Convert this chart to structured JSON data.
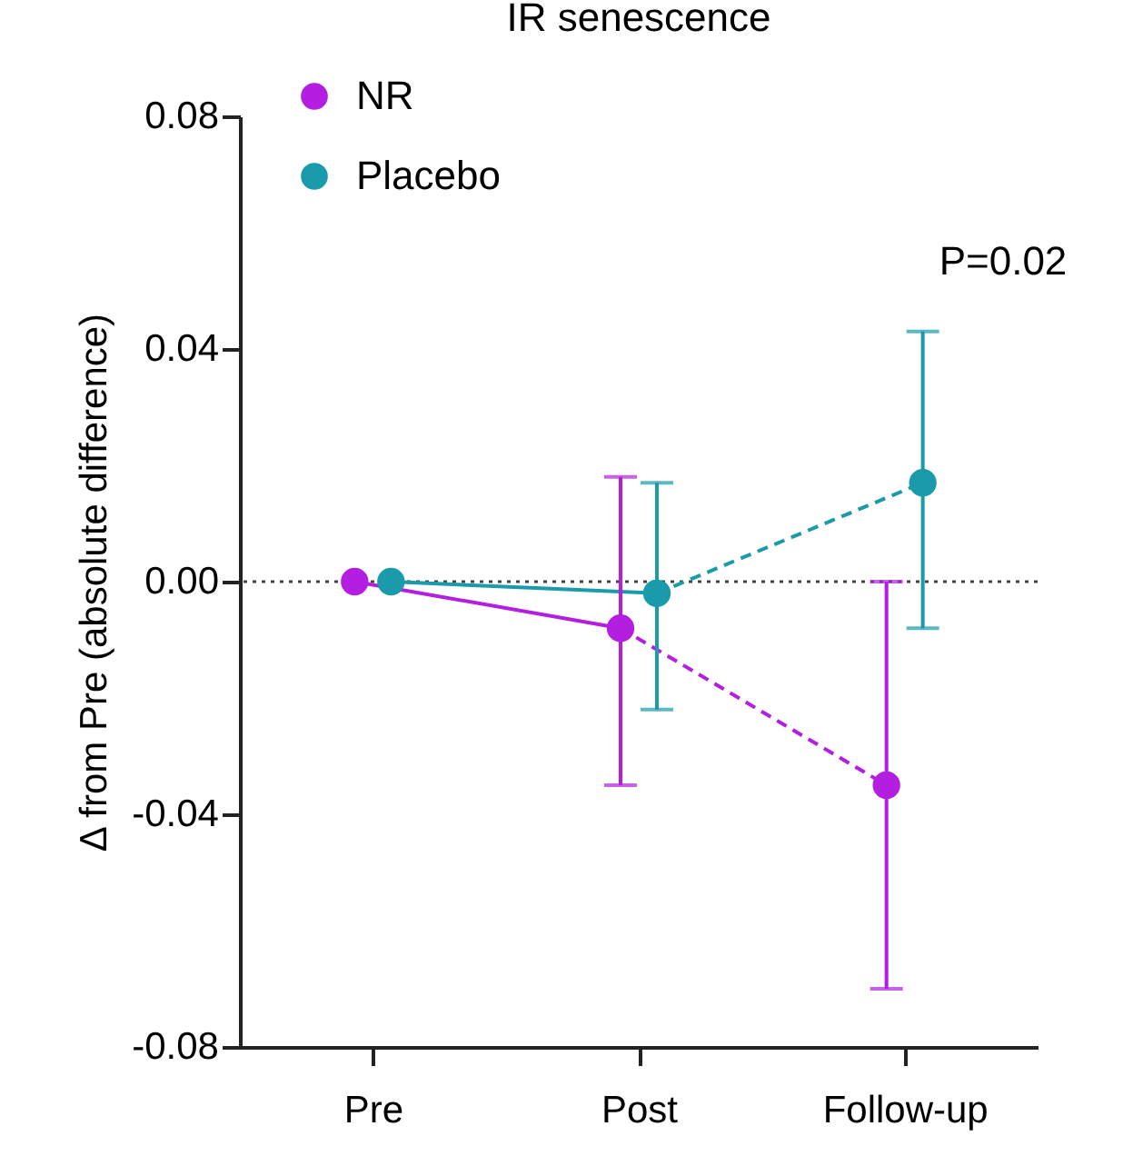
{
  "chart_data": {
    "type": "line",
    "title": "IR senescence",
    "ylabel": "Δ from Pre (absolute difference)",
    "categories": [
      "Pre",
      "Post",
      "Follow-up"
    ],
    "ylim": [
      -0.08,
      0.08
    ],
    "yticks": [
      {
        "value": -0.08,
        "label": "-0.08"
      },
      {
        "value": -0.04,
        "label": "-0.04"
      },
      {
        "value": 0,
        "label": "0.00"
      },
      {
        "value": 0.04,
        "label": "0.04"
      },
      {
        "value": 0.08,
        "label": "0.08"
      }
    ],
    "series": [
      {
        "type": "line",
        "color": "#b31ee0",
        "line_style": "solid",
        "marker": "none",
        "x": [
          "Pre",
          "Post"
        ],
        "values": [
          0,
          -0.008
        ]
      },
      {
        "type": "line",
        "color": "#b31ee0",
        "line_style": "dashed",
        "marker": "none",
        "x": [
          "Post",
          "Follow-up"
        ],
        "values": [
          -0.008,
          -0.035
        ]
      },
      {
        "type": "line",
        "color": "#1a9aaa",
        "line_style": "solid",
        "marker": "none",
        "x": [
          "Pre",
          "Post"
        ],
        "values": [
          0,
          -0.002
        ]
      },
      {
        "type": "line",
        "color": "#1a9aaa",
        "line_style": "dashed",
        "marker": "none",
        "x": [
          "Post",
          "Follow-up"
        ],
        "values": [
          -0.002,
          0.017
        ]
      },
      {
        "name": "NR",
        "type": "scatter",
        "color": "#b31ee0",
        "values": [
          0,
          -0.008,
          -0.035
        ],
        "errors": [
          null,
          [
            -0.035,
            0.018
          ],
          [
            -0.07,
            0
          ]
        ]
      },
      {
        "name": "Placebo",
        "type": "scatter",
        "color": "#1a9aaa",
        "values": [
          0,
          -0.002,
          0.017
        ],
        "errors": [
          null,
          [
            -0.022,
            0.017
          ],
          [
            -0.008,
            0.043
          ]
        ]
      }
    ],
    "ref_lines": [
      {
        "axis": "y",
        "value": 0,
        "color": "#444444",
        "line_style": "dotted"
      }
    ],
    "annotations": [
      "P=0.02"
    ],
    "marker": "circle",
    "grid": false,
    "legend": "top left"
  }
}
